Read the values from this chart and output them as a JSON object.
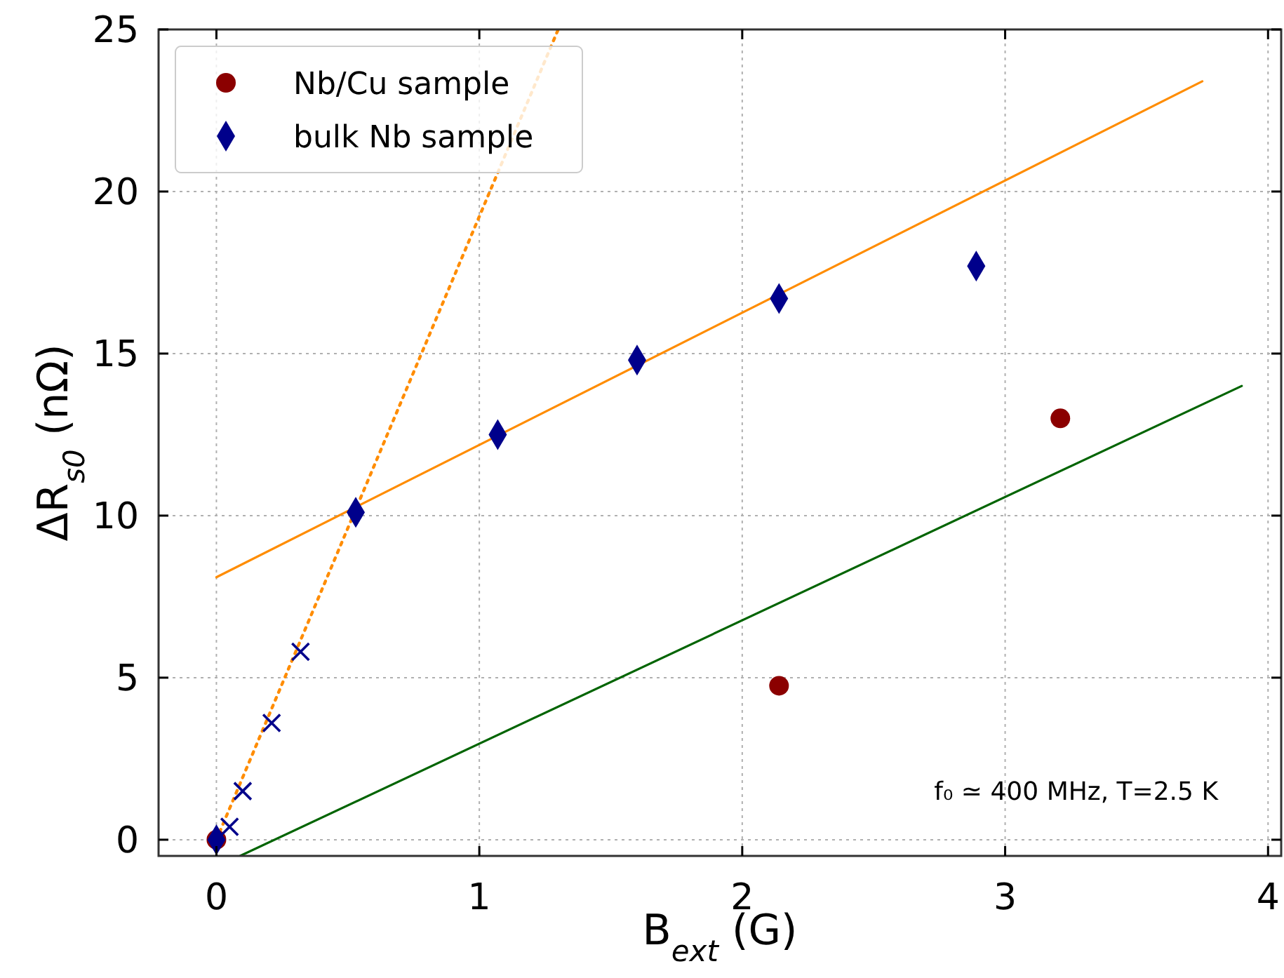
{
  "chart_data": {
    "type": "scatter",
    "xlabel": "B$_{ext}$ (G)",
    "ylabel": "ΔR$_{s0}$ (nΩ)",
    "xlim": [
      -0.22,
      4.05
    ],
    "ylim": [
      -0.5,
      25
    ],
    "xticks": [
      0,
      1,
      2,
      3,
      4
    ],
    "yticks": [
      0,
      5,
      10,
      15,
      20,
      25
    ],
    "grid": true,
    "legend": "top left",
    "annotations": [
      "f₀ ≃ 400 MHz, T=2.5 K"
    ],
    "series": [
      {
        "name": "Nb/Cu sample",
        "marker": "circle",
        "color": "#8b0000",
        "x": [
          0,
          2.14,
          3.21
        ],
        "values": [
          0,
          4.75,
          13.0
        ]
      },
      {
        "name": "bulk Nb sample",
        "marker": "diamond",
        "color": "#00008b",
        "x": [
          0,
          0.53,
          1.07,
          1.6,
          2.14,
          2.89
        ],
        "values": [
          0,
          10.1,
          12.5,
          14.8,
          16.7,
          17.7
        ]
      },
      {
        "marker": "cross",
        "color": "#00008b",
        "x": [
          0.05,
          0.1,
          0.21,
          0.32
        ],
        "values": [
          0.4,
          1.5,
          3.6,
          5.8
        ]
      },
      {
        "type": "line",
        "marker": "none",
        "line_style": "solid",
        "color": "#ff8c00",
        "x": [
          0,
          3.75
        ],
        "values": [
          8.1,
          23.4
        ]
      },
      {
        "type": "line",
        "marker": "none",
        "line_style": "dotted",
        "color": "#ff8c00",
        "x": [
          0,
          1.3
        ],
        "values": [
          0,
          25
        ]
      },
      {
        "type": "line",
        "marker": "none",
        "line_style": "solid",
        "color": "#006400",
        "x": [
          0.09,
          3.9
        ],
        "values": [
          -0.5,
          14.0
        ]
      }
    ]
  }
}
